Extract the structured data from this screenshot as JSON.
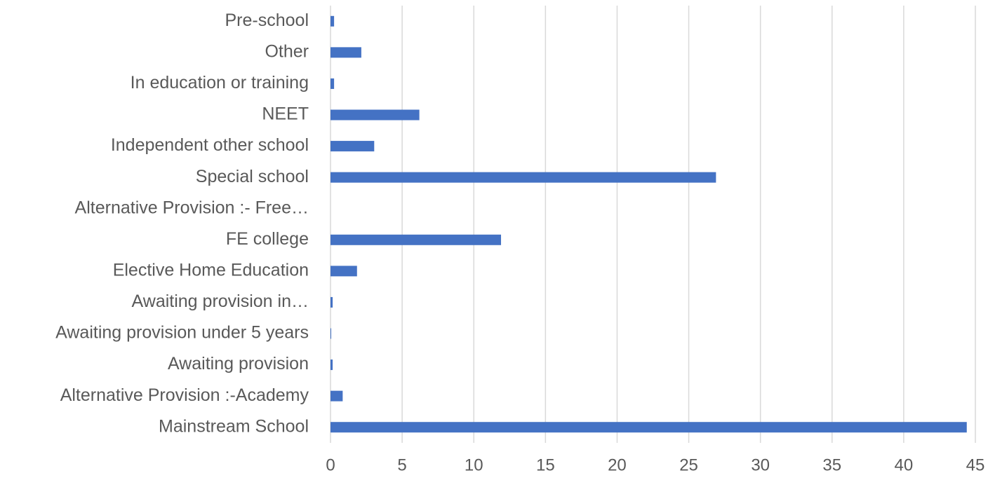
{
  "chart_data": {
    "type": "barh",
    "categories": [
      "Mainstream School",
      "Alternative Provision :-Academy",
      "Awaiting provision",
      "Awaiting provision under 5 years",
      "Awaiting provision in…",
      "Elective Home Education",
      "FE college",
      "Alternative Provision :- Free…",
      "Special school",
      "Independent other school",
      "NEET",
      "In education or training",
      "Other",
      "Pre-school"
    ],
    "values": [
      44.4,
      0.85,
      0.15,
      0.05,
      0.15,
      1.85,
      11.9,
      0,
      26.9,
      3.05,
      6.2,
      0.25,
      2.15,
      0.25
    ],
    "color": "#4472c4",
    "xlim": [
      0,
      45
    ],
    "xticks": [
      0,
      5,
      10,
      15,
      20,
      25,
      30,
      35,
      40,
      45
    ],
    "grid": true
  }
}
